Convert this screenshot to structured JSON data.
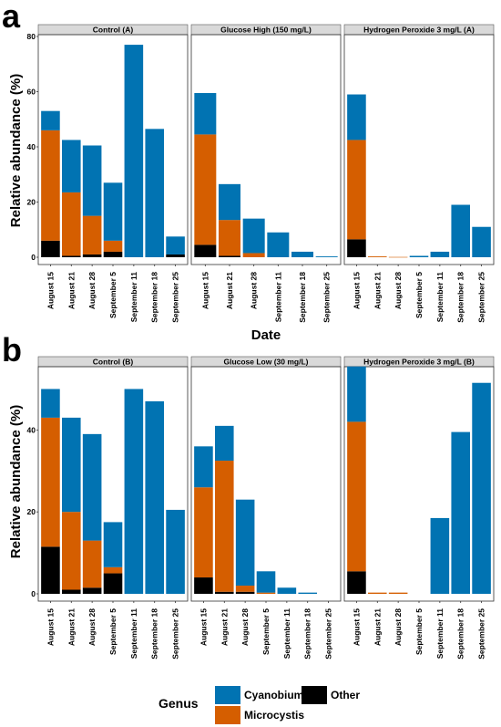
{
  "chart_data": [
    {
      "panel_label": "a",
      "type": "bar",
      "stacked": true,
      "ylabel": "Relative abundance (%)",
      "xlabel": "Date",
      "ylim": [
        0,
        80
      ],
      "yticks": [
        0,
        20,
        40,
        60,
        80
      ],
      "grid": false,
      "facets": [
        {
          "title": "Control (A)",
          "categories": [
            "August 15",
            "August 21",
            "August 28",
            "September 5",
            "September 11",
            "September 18",
            "September 25"
          ],
          "series": [
            {
              "name": "Other",
              "values": [
                6,
                0.5,
                1,
                2,
                0,
                0,
                1
              ]
            },
            {
              "name": "Microcystis",
              "values": [
                40,
                23,
                14,
                4,
                0,
                0,
                0
              ]
            },
            {
              "name": "Cyanobium",
              "values": [
                7,
                19,
                25.5,
                21,
                77,
                46.5,
                6.5
              ]
            }
          ]
        },
        {
          "title": "Glucose High (150 mg/L)",
          "categories": [
            "August 15",
            "August 21",
            "August 28",
            "September 11",
            "September 18",
            "September 25"
          ],
          "series": [
            {
              "name": "Other",
              "values": [
                4.5,
                0.5,
                0,
                0,
                0,
                0
              ]
            },
            {
              "name": "Microcystis",
              "values": [
                40,
                13,
                1.5,
                0,
                0,
                0
              ]
            },
            {
              "name": "Cyanobium",
              "values": [
                15,
                13,
                12.5,
                9,
                2,
                0.3
              ]
            }
          ]
        },
        {
          "title": "Hydrogen Peroxide 3 mg/L (A)",
          "categories": [
            "August 15",
            "August 21",
            "August 28",
            "September 5",
            "September 11",
            "September 18",
            "September 25"
          ],
          "series": [
            {
              "name": "Other",
              "values": [
                6.5,
                0,
                0,
                0,
                0,
                0,
                0
              ]
            },
            {
              "name": "Microcystis",
              "values": [
                36,
                0.3,
                0.1,
                0,
                0,
                0,
                0
              ]
            },
            {
              "name": "Cyanobium",
              "values": [
                16.5,
                0,
                0,
                0.5,
                2,
                19,
                11
              ]
            }
          ]
        }
      ]
    },
    {
      "panel_label": "b",
      "type": "bar",
      "stacked": true,
      "ylabel": "Relative abundance (%)",
      "xlabel": "",
      "ylim": [
        0,
        55
      ],
      "yticks": [
        0,
        20,
        40
      ],
      "grid": false,
      "facets": [
        {
          "title": "Control (B)",
          "categories": [
            "August 15",
            "August 21",
            "August 28",
            "September 5",
            "September 11",
            "September 18",
            "September 25"
          ],
          "series": [
            {
              "name": "Other",
              "values": [
                11.5,
                1,
                1.5,
                5,
                0,
                0,
                0
              ]
            },
            {
              "name": "Microcystis",
              "values": [
                31.5,
                19,
                11.5,
                1.5,
                0,
                0,
                0
              ]
            },
            {
              "name": "Cyanobium",
              "values": [
                7,
                23,
                26,
                11,
                50,
                47,
                20.5
              ]
            }
          ]
        },
        {
          "title": "Glucose Low (30 mg/L)",
          "categories": [
            "August 15",
            "August 21",
            "August 28",
            "September 5",
            "September 11",
            "September 18",
            "September 25"
          ],
          "series": [
            {
              "name": "Other",
              "values": [
                4,
                0.5,
                0.5,
                0,
                0,
                0,
                0
              ]
            },
            {
              "name": "Microcystis",
              "values": [
                22,
                32,
                1.5,
                0.3,
                0,
                0,
                0
              ]
            },
            {
              "name": "Cyanobium",
              "values": [
                10,
                8.5,
                21,
                5.2,
                1.5,
                0.3,
                0
              ]
            }
          ]
        },
        {
          "title": "Hydrogen Peroxide 3 mg/L (B)",
          "categories": [
            "August 15",
            "August 21",
            "August 28",
            "September 5",
            "September 11",
            "September 18",
            "September 25"
          ],
          "series": [
            {
              "name": "Other",
              "values": [
                5.5,
                0,
                0,
                0,
                0,
                0,
                0
              ]
            },
            {
              "name": "Microcystis",
              "values": [
                36.5,
                0.3,
                0.3,
                0,
                0,
                0,
                0
              ]
            },
            {
              "name": "Cyanobium",
              "values": [
                13.5,
                0,
                0,
                0,
                18.5,
                39.5,
                51.5
              ]
            }
          ]
        }
      ]
    }
  ],
  "legend": {
    "title": "Genus",
    "placement": "bottom",
    "items": [
      {
        "name": "Cyanobium",
        "color": "#0173b2"
      },
      {
        "name": "Other",
        "color": "#000000"
      },
      {
        "name": "Microcystis",
        "color": "#d55e00"
      }
    ]
  },
  "colors": {
    "Cyanobium": "#0173b2",
    "Microcystis": "#d55e00",
    "Other": "#000000",
    "strip": "#d9d9d9"
  }
}
